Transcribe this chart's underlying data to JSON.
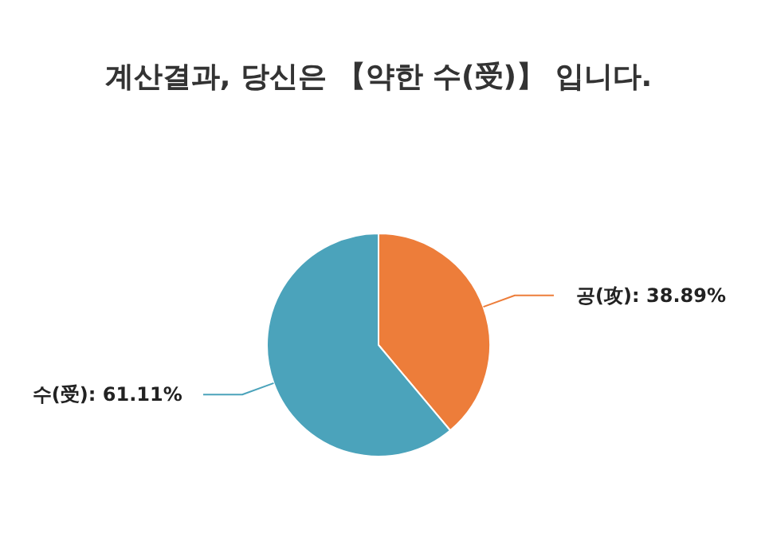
{
  "chart_data": {
    "type": "pie",
    "title": "계산결과, 당신은 【약한 수(受)】 입니다.",
    "categories": [
      "공(攻)",
      "수(受)"
    ],
    "values": [
      38.89,
      61.11
    ],
    "value_labels": [
      ": 38.89%",
      ": 61.11%"
    ],
    "colors": [
      "#ed7d3a",
      "#4ba3bb"
    ]
  }
}
